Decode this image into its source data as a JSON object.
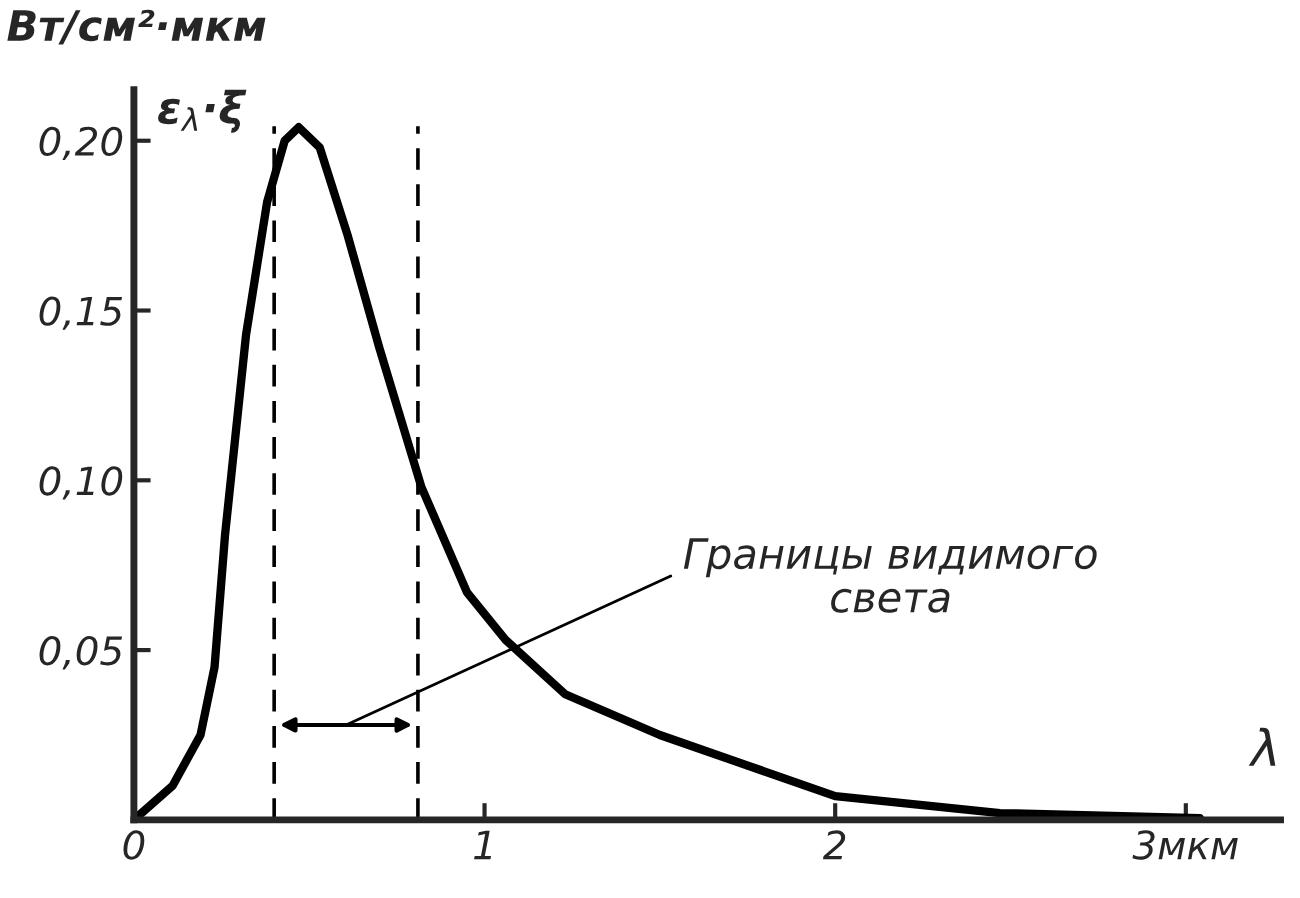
{
  "chart_data": {
    "type": "line",
    "ylabel": "Вт/см²·мкм",
    "xlabel": "λ",
    "x": [
      0,
      0.11,
      0.19,
      0.23,
      0.26,
      0.32,
      0.38,
      0.43,
      0.47,
      0.53,
      0.61,
      0.7,
      0.82,
      0.95,
      1.06,
      1.23,
      1.5,
      2.0,
      2.47,
      3.04
    ],
    "series": [
      {
        "color": "#000000",
        "values": [
          0,
          0.01,
          0.025,
          0.045,
          0.084,
          0.143,
          0.182,
          0.2,
          0.204,
          0.198,
          0.172,
          0.139,
          0.098,
          0.067,
          0.053,
          0.037,
          0.025,
          0.007,
          0.002,
          0.0005
        ]
      }
    ],
    "xlim": [
      0,
      3.27
    ],
    "ylim": [
      0,
      0.215
    ],
    "xticks": [
      0,
      1,
      2,
      {
        "value": 3,
        "label": "3мкм"
      }
    ],
    "yticks": [
      {
        "value": 0.05,
        "label": "0,05"
      },
      {
        "value": 0.1,
        "label": "0,10"
      },
      {
        "value": 0.15,
        "label": "0,15"
      },
      {
        "value": 0.2,
        "label": "0,20"
      }
    ],
    "ref_lines": [
      {
        "axis": "x",
        "value": 0.4,
        "label": null,
        "color": "#000000",
        "line_style": "dashed"
      },
      {
        "axis": "x",
        "value": 0.81,
        "label": null,
        "color": "#000000",
        "line_style": "dashed"
      }
    ],
    "annotations": [
      "ε$_{λ}$·ξ",
      "Границы видимого\nсвета"
    ],
    "grid": false,
    "marker": "none",
    "line_style": "solid"
  }
}
